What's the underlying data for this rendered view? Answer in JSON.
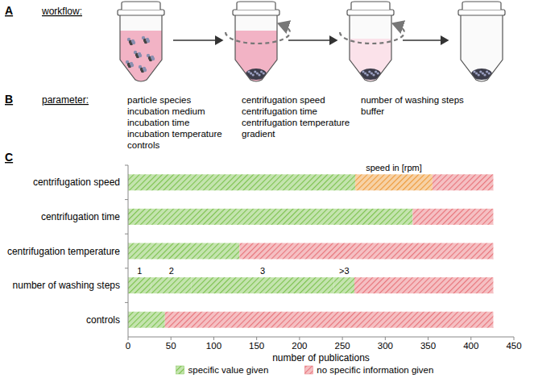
{
  "panels": {
    "a": {
      "label": "A",
      "title": "workflow:"
    },
    "b": {
      "label": "B",
      "title": "parameter:",
      "columns": [
        [
          "particle species",
          "incubation medium",
          "incubation time",
          "incubation temperature",
          "controls"
        ],
        [
          "centrifugation speed",
          "centrifugation time",
          "centrifugation temperature",
          "gradient"
        ],
        [
          "number of washing steps",
          "buffer"
        ]
      ]
    },
    "c": {
      "label": "C"
    }
  },
  "chart_data": {
    "type": "bar",
    "orientation": "horizontal",
    "stacked": true,
    "grid": false,
    "legend": "bottom",
    "categories": [
      "centrifugation speed",
      "centrifugation time",
      "centrifugation temperature",
      "number of washing steps",
      "controls"
    ],
    "x_label": "number of publications",
    "xlim": [
      0,
      450
    ],
    "xticks": [
      0,
      50,
      100,
      150,
      200,
      250,
      300,
      350,
      400,
      450
    ],
    "series": [
      {
        "name": "specific value given",
        "color": "#7cc24e",
        "values": [
          265,
          332,
          130,
          27,
          43
        ]
      },
      {
        "name": "specific value given",
        "color": "#7cc24e",
        "values": [
          null,
          null,
          null,
          47,
          null
        ]
      },
      {
        "name": "specific value given",
        "color": "#7cc24e",
        "values": [
          null,
          null,
          null,
          166,
          null
        ]
      },
      {
        "name": "specific value given",
        "color": "#7cc24e",
        "values": [
          null,
          null,
          null,
          24,
          null
        ]
      },
      {
        "color": "#ee9a3a",
        "values": [
          90,
          null,
          null,
          null,
          null
        ]
      },
      {
        "name": "no specific information given",
        "color": "#e8747a",
        "values": [
          71,
          94,
          296,
          162,
          383
        ]
      }
    ],
    "annotations": [
      {
        "text": "speed in [rpm]",
        "category": 0,
        "series": 4
      },
      {
        "text": "1",
        "category": 3,
        "series": 0
      },
      {
        "text": "2",
        "category": 3,
        "series": 1
      },
      {
        "text": "3",
        "category": 3,
        "series": 2
      },
      {
        "text": ">3",
        "category": 3,
        "series": 3
      }
    ]
  }
}
